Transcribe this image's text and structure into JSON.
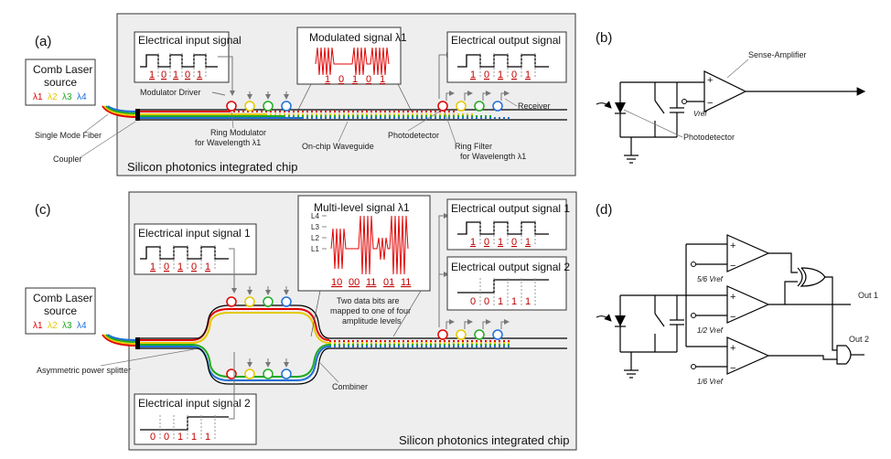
{
  "panels": {
    "a": "(a)",
    "b": "(b)",
    "c": "(c)",
    "d": "(d)"
  },
  "comb_laser": {
    "line1": "Comb Laser",
    "line2": "source",
    "lambdas": [
      "λ1",
      "λ2",
      "λ3",
      "λ4"
    ]
  },
  "colors": {
    "l1": "#e00000",
    "l2": "#e6c800",
    "l3": "#22aa22",
    "l4": "#1f6fd6",
    "chip_bg": "#eeeeee",
    "signal": "#e00000"
  },
  "a": {
    "chip_label": "Silicon photonics integrated chip",
    "input_title": "Electrical input signal",
    "input_bits": [
      "1",
      "0",
      "1",
      "0",
      "1"
    ],
    "modulated_title": "Modulated signal λ1",
    "modulated_bits": [
      "1",
      "0",
      "1",
      "0",
      "1"
    ],
    "output_title": "Electrical output signal",
    "output_bits": [
      "1",
      "0",
      "1",
      "0",
      "1"
    ],
    "modulator_driver": "Modulator Driver",
    "single_mode_fiber": "Single Mode Fiber",
    "coupler": "Coupler",
    "ring_modulator": [
      "Ring Modulator",
      "for Wavelength λ1"
    ],
    "waveguide": "On-chip Waveguide",
    "photodetector": "Photodetector",
    "ring_filter": [
      "Ring Filter",
      "for Wavelength λ1"
    ],
    "receiver": "Receiver"
  },
  "b": {
    "sense_amp": "Sense-Amplifier",
    "vref": "Vref",
    "photodetector": "Photodetector",
    "plus": "+",
    "minus": "−"
  },
  "c": {
    "chip_label": "Silicon photonics integrated chip",
    "input1_title": "Electrical input signal 1",
    "input1_bits": [
      "1",
      "0",
      "1",
      "0",
      "1"
    ],
    "input2_title": "Electrical input signal 2",
    "input2_bits": [
      "0",
      "0",
      "1",
      "1",
      "1"
    ],
    "multilevel_title": "Multi-level signal λ1",
    "levels": [
      "L4",
      "L3",
      "L2",
      "L1"
    ],
    "multilevel_bits": [
      "10",
      "00",
      "11",
      "01",
      "11"
    ],
    "note": [
      "Two data bits are",
      "mapped to one of four",
      "amplitude levels"
    ],
    "output1_title": "Electrical output signal 1",
    "output1_bits": [
      "1",
      "0",
      "1",
      "0",
      "1"
    ],
    "output2_title": "Electrical output signal 2",
    "output2_bits": [
      "0",
      "0",
      "1",
      "1",
      "1"
    ],
    "splitter": "Asymmetric power splitter",
    "combiner": "Combiner"
  },
  "d": {
    "out1": "Out 1",
    "out2": "Out 2",
    "vref1": "5/6 Vref",
    "vref2": "1/2 Vref",
    "vref3": "1/6 Vref"
  }
}
